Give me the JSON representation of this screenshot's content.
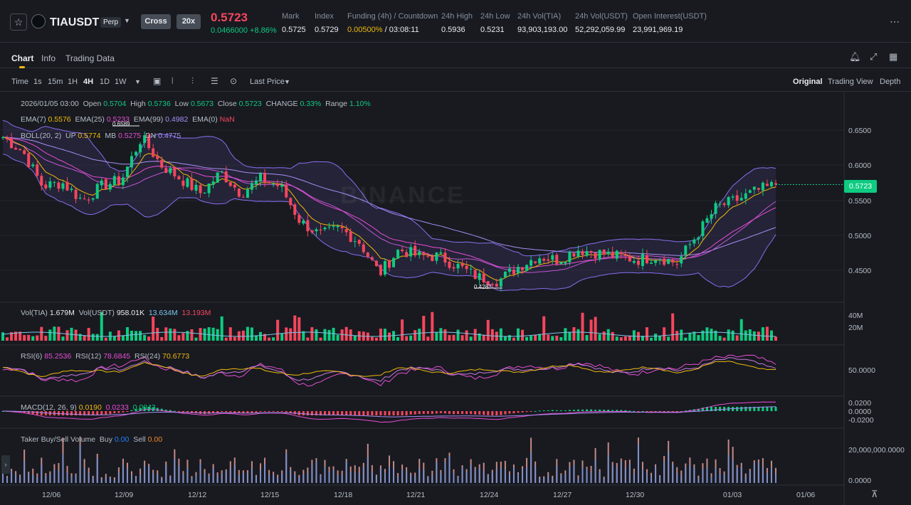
{
  "header": {
    "symbol": "TIAUSDT",
    "perp_badge": "Perp",
    "margin_mode": "Cross",
    "leverage": "20x",
    "last_price": "0.5723",
    "change": "0.0466000 +8.86%",
    "stats": [
      {
        "label": "Mark",
        "value": "0.5725"
      },
      {
        "label": "Index",
        "value": "0.5729"
      },
      {
        "label": "Funding (4h) / Countdown",
        "value_rate": "0.00500%",
        "value_time": " / 03:08:11"
      },
      {
        "label": "24h High",
        "value": "0.5936"
      },
      {
        "label": "24h Low",
        "value": "0.5231"
      },
      {
        "label": "24h Vol(TIA)",
        "value": "93,903,193.00"
      },
      {
        "label": "24h Vol(USDT)",
        "value": "52,292,059.99"
      },
      {
        "label": "Open Interest(USDT)",
        "value": "23,991,969.19"
      }
    ]
  },
  "tabs": [
    "Chart",
    "Info",
    "Trading Data"
  ],
  "toolbar": {
    "intervals": [
      "Time",
      "1s",
      "15m",
      "1H",
      "4H",
      "1D",
      "1W"
    ],
    "active_interval": "4H",
    "price_type": "Last Price",
    "views": [
      "Original",
      "Trading View",
      "Depth"
    ],
    "active_view": "Original"
  },
  "ohlc": {
    "date": "2026/01/05 03:00",
    "open_label": "Open",
    "open": "0.5704",
    "high_label": "High",
    "high": "0.5736",
    "low_label": "Low",
    "low": "0.5673",
    "close_label": "Close",
    "close": "0.5723",
    "change_label": "CHANGE",
    "change": "0.33%",
    "range_label": "Range",
    "range": "1.10%"
  },
  "ema": {
    "l7": "EMA(7)",
    "v7": "0.5576",
    "l25": "EMA(25)",
    "v25": "0.5233",
    "l99": "EMA(99)",
    "v99": "0.4982",
    "l0": "EMA(0)",
    "v0": "NaN"
  },
  "boll": {
    "label": "BOLL(20, 2)",
    "up_label": "UP",
    "up": "0.5774",
    "mb_label": "MB",
    "mb": "0.5275",
    "dn_label": "DN",
    "dn": "0.4775"
  },
  "watermark": "BINANCE",
  "price_axis": [
    "0.6500",
    "0.6000",
    "0.5500",
    "0.5000",
    "0.4500"
  ],
  "current_price_tag": "0.5723",
  "high_label": "0.6589",
  "low_label": "0.4287",
  "volume": {
    "l1": "Vol(TIA)",
    "v1": "1.679M",
    "l2": "Vol(USDT)",
    "v2": "958.01K",
    "v3": "13.634M",
    "v4": "13.193M",
    "axis": [
      "40M",
      "20M"
    ]
  },
  "rsi": {
    "l6": "RSI(6)",
    "v6": "85.2536",
    "l12": "RSI(12)",
    "v12": "78.6845",
    "l24": "RSI(24)",
    "v24": "70.6773",
    "axis": [
      "50.0000"
    ]
  },
  "macd": {
    "label": "MACD(12, 26, 9)",
    "v1": "0.0190",
    "v2": "0.0233",
    "v3": "0.0043",
    "axis": [
      "0.0200",
      "0.0000",
      "-0.0200"
    ]
  },
  "taker": {
    "label": "Taker Buy/Sell Volume",
    "buy_label": "Buy",
    "buy": "0.00",
    "sell_label": "Sell",
    "sell": "0.00",
    "axis": [
      "20,000,000.0000",
      "0.0000"
    ]
  },
  "date_axis": [
    "12/06",
    "12/09",
    "12/12",
    "12/15",
    "12/18",
    "12/21",
    "12/24",
    "12/27",
    "12/30",
    "01/03",
    "01/06"
  ],
  "chart_data": {
    "type": "candlestick",
    "price_range": [
      0.42,
      0.68
    ],
    "anchor_closes": [
      0.64,
      0.62,
      0.57,
      0.575,
      0.55,
      0.57,
      0.58,
      0.64,
      0.6,
      0.58,
      0.56,
      0.59,
      0.56,
      0.58,
      0.57,
      0.52,
      0.5,
      0.51,
      0.49,
      0.445,
      0.48,
      0.47,
      0.47,
      0.455,
      0.44,
      0.435,
      0.455,
      0.47,
      0.465,
      0.48,
      0.475,
      0.47,
      0.465,
      0.47,
      0.46,
      0.5,
      0.54,
      0.55,
      0.563,
      0.572
    ],
    "high": 0.6589,
    "low": 0.4287,
    "last": 0.5723
  },
  "colors": {
    "up": "#0ecb81",
    "down": "#f6465d",
    "ema7": "#f0b90b",
    "ema25": "#e84dd3",
    "ema99": "#a98ef5",
    "boll": "#8b6ef0",
    "bg": "#181a20",
    "grid": "#22262d"
  }
}
